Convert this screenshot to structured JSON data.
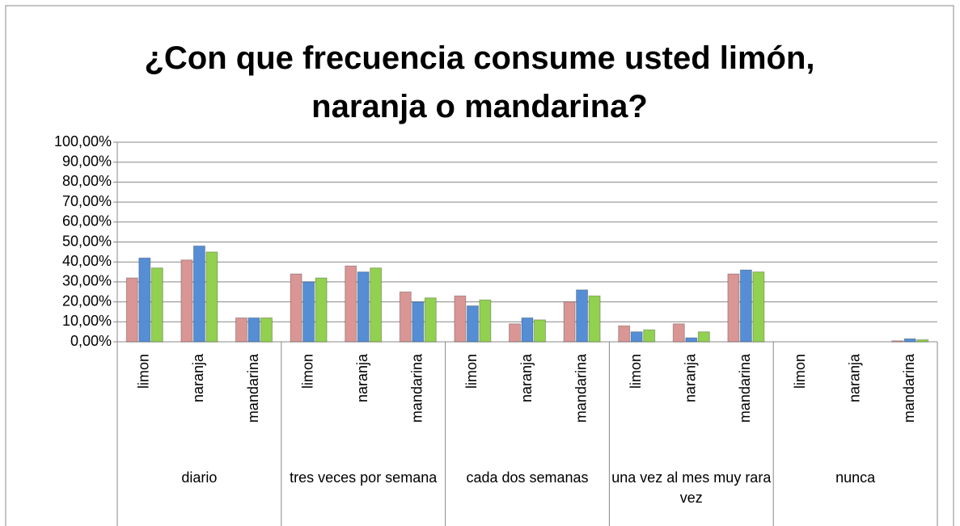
{
  "chart_data": {
    "type": "bar",
    "title": "¿Con que frecuencia consume usted limón, naranja o mandarina?",
    "categories": [
      "limon",
      "naranja",
      "mandarina",
      "limon",
      "naranja",
      "mandarina",
      "limon",
      "naranja",
      "mandarina",
      "limon",
      "naranja",
      "mandarina",
      "limon",
      "naranja",
      "mandarina"
    ],
    "groups": [
      "diario",
      "tres veces por semana",
      "cada dos semanas",
      "una vez al mes muy rara vez",
      "nunca"
    ],
    "series": [
      {
        "color": "#d99694",
        "values": [
          32,
          41,
          12,
          34,
          38,
          25,
          23,
          9,
          20,
          8,
          9,
          34,
          0,
          0,
          0.5
        ]
      },
      {
        "color": "#558ed5",
        "values": [
          42,
          48,
          12,
          30,
          35,
          20,
          18,
          12,
          26,
          5,
          2,
          36,
          0,
          0,
          1.5
        ]
      },
      {
        "color": "#92d050",
        "values": [
          37,
          45,
          12,
          32,
          37,
          22,
          21,
          11,
          23,
          6,
          5,
          35,
          0,
          0,
          1
        ]
      }
    ],
    "ylim": [
      0,
      100
    ],
    "yticks": [
      {
        "value": 0,
        "label": "0,00%"
      },
      {
        "value": 10,
        "label": "10,00%"
      },
      {
        "value": 20,
        "label": "20,00%"
      },
      {
        "value": 30,
        "label": "30,00%"
      },
      {
        "value": 40,
        "label": "40,00%"
      },
      {
        "value": 50,
        "label": "50,00%"
      },
      {
        "value": 60,
        "label": "60,00%"
      },
      {
        "value": 70,
        "label": "70,00%"
      },
      {
        "value": 80,
        "label": "80,00%"
      },
      {
        "value": 90,
        "label": "90,00%"
      },
      {
        "value": 100,
        "label": "100,00%"
      }
    ],
    "grid": true
  }
}
